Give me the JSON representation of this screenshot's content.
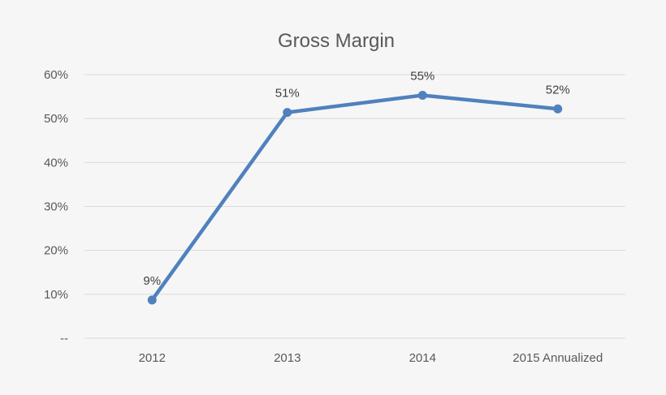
{
  "chart_data": {
    "type": "line",
    "title": "Gross Margin",
    "xlabel": "",
    "ylabel": "",
    "categories": [
      "2012",
      "2013",
      "2014",
      "2015 Annualized"
    ],
    "series": [
      {
        "values": [
          8.7,
          51.4,
          55.3,
          52.2
        ],
        "labels": [
          "9%",
          "51%",
          "55%",
          "52%"
        ]
      }
    ],
    "ylim": [
      0,
      60
    ],
    "yticks": [
      {
        "value": 0,
        "label": "--"
      },
      {
        "value": 10,
        "label": "10%"
      },
      {
        "value": 20,
        "label": "20%"
      },
      {
        "value": 30,
        "label": "30%"
      },
      {
        "value": 40,
        "label": "40%"
      },
      {
        "value": 50,
        "label": "50%"
      },
      {
        "value": 60,
        "label": "60%"
      }
    ],
    "grid": true,
    "legend": "none",
    "colors": {
      "line": "#4f81bd",
      "grid": "#d9d9d9",
      "text": "#595959"
    }
  }
}
